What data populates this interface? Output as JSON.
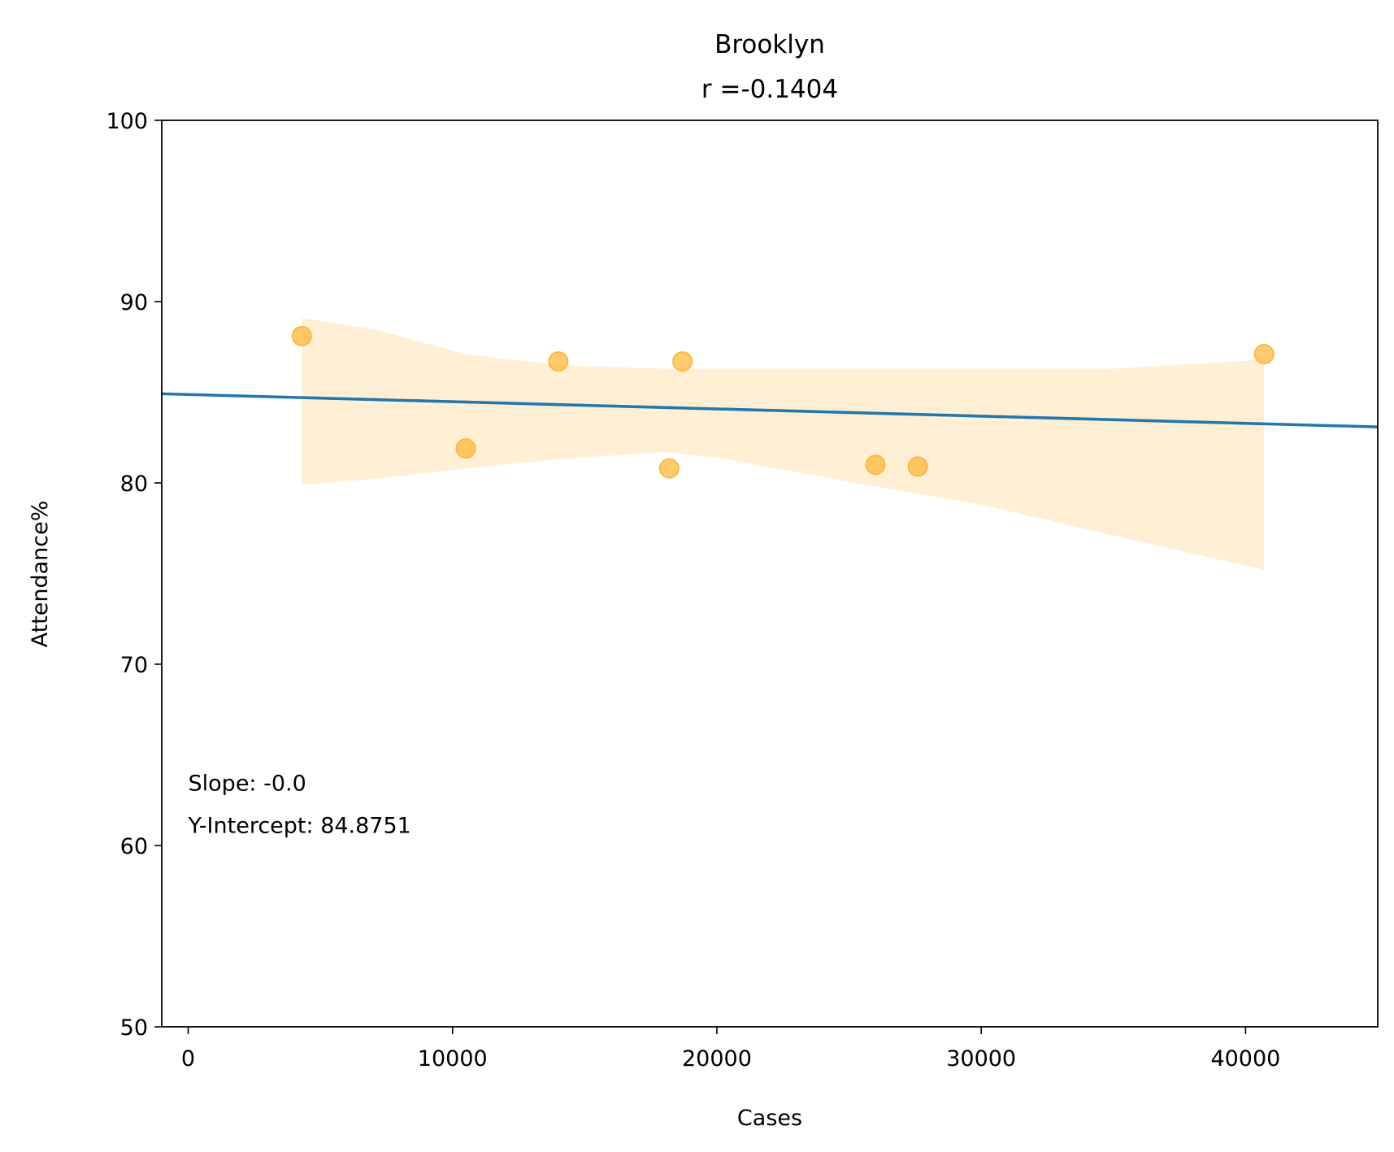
{
  "chart_data": {
    "type": "scatter",
    "title": "Brooklyn",
    "subtitle": "r =-0.1404",
    "xlabel": "Cases",
    "ylabel": "Attendance%",
    "xlim": [
      -1000,
      45000
    ],
    "ylim": [
      50,
      100
    ],
    "xticks": [
      0,
      10000,
      20000,
      30000,
      40000
    ],
    "xtick_labels": [
      "0",
      "10000",
      "20000",
      "30000",
      "40000"
    ],
    "yticks": [
      50,
      60,
      70,
      80,
      90,
      100
    ],
    "ytick_labels": [
      "50",
      "60",
      "70",
      "80",
      "90",
      "100"
    ],
    "grid": false,
    "series": [
      {
        "x": [
          4300,
          10500,
          14000,
          18200,
          18700,
          26000,
          27600,
          40700
        ],
        "y": [
          88.1,
          81.9,
          86.7,
          80.8,
          86.7,
          81.0,
          80.9,
          87.1
        ],
        "color": "#fdb93e"
      }
    ],
    "fit_line": {
      "slope": -3.97e-05,
      "intercept": 84.8751,
      "color": "#1f77b4"
    },
    "regression": {
      "color": "#f5a623",
      "band_color": "#fff0d5",
      "x": [
        4300,
        7000,
        10500,
        14000,
        18000,
        20000,
        26000,
        30000,
        35000,
        40700
      ],
      "mean": [
        84.71,
        84.6,
        84.46,
        84.32,
        84.16,
        84.08,
        83.84,
        83.68,
        83.48,
        83.26
      ],
      "upper": [
        89.1,
        88.5,
        87.1,
        86.5,
        86.3,
        86.3,
        86.3,
        86.3,
        86.3,
        86.8
      ],
      "lower": [
        79.9,
        80.2,
        80.8,
        81.3,
        81.7,
        81.4,
        79.8,
        78.8,
        77.1,
        75.2
      ]
    },
    "annotation": {
      "lines": [
        "Slope: -0.0",
        "Y-Intercept: 84.8751"
      ],
      "x": 0,
      "y": 62.5
    }
  }
}
